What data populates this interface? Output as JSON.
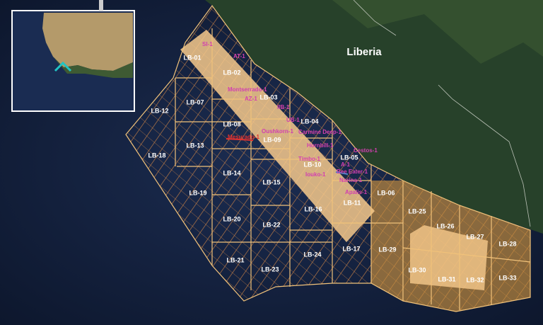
{
  "map": {
    "country_label": "Liberia",
    "blocks": [
      "LB-01",
      "LB-02",
      "LB-03",
      "LB-04",
      "LB-05",
      "LB-06",
      "LB-07",
      "LB-08",
      "LB-09",
      "LB-10",
      "LB-11",
      "LB-12",
      "LB-13",
      "LB-14",
      "LB-15",
      "LB-16",
      "LB-17",
      "LB-18",
      "LB-19",
      "LB-20",
      "LB-21",
      "LB-22",
      "LB-23",
      "LB-24",
      "LB-25",
      "LB-26",
      "LB-27",
      "LB-28",
      "LB-29",
      "LB-30",
      "LB-31",
      "LB-32",
      "LB-33"
    ],
    "wells": [
      "SI-1",
      "AT-1",
      "Montserrado-1",
      "AZ-1",
      "IIB-1",
      "UB-1",
      "Mesurado-1",
      "Oushkorn-1",
      "Carmine Deep-1",
      "Hornbill-1",
      "Timbo-1",
      "Cestos-1",
      "A-1",
      "Iouko-1",
      "Bee Eater-1",
      "Narina-1",
      "Apalis-1"
    ]
  }
}
